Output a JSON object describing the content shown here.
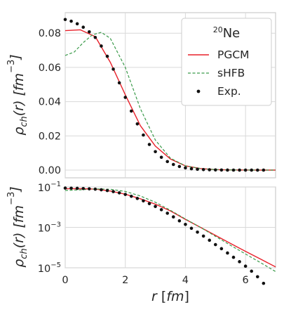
{
  "chart_data": [
    {
      "type": "line",
      "panel": "top",
      "ylabel": "ρ_ch(r) [fm⁻³]",
      "xlabel": "",
      "xlim": [
        0,
        7
      ],
      "ylim": [
        -0.0045,
        0.092
      ],
      "yscale": "linear",
      "xticks": [
        0,
        2,
        4,
        6
      ],
      "yticks": [
        0.0,
        0.02,
        0.04,
        0.06,
        0.08
      ],
      "ytick_labels": [
        "0.00",
        "0.02",
        "0.04",
        "0.06",
        "0.08"
      ],
      "grid": true,
      "legend": {
        "placement": "top-right",
        "title_base": "Ne",
        "title_sup": "20"
      },
      "series": [
        {
          "name": "PGCM",
          "style": "line",
          "color": "#e8202a",
          "x": [
            0,
            0.5,
            1.0,
            1.5,
            2.0,
            2.5,
            3.0,
            3.5,
            4.0,
            4.5,
            5.0,
            5.5,
            6.0,
            6.5,
            7.0
          ],
          "y": [
            0.0815,
            0.082,
            0.078,
            0.063,
            0.044,
            0.026,
            0.014,
            0.0065,
            0.0025,
            0.0009,
            0.0003,
            0.0001,
            4e-05,
            1e-05,
            0.0
          ]
        },
        {
          "name": "sHFB",
          "style": "dashed",
          "color": "#3a9a4a",
          "x": [
            0,
            0.3,
            0.6,
            0.9,
            1.2,
            1.5,
            2.0,
            2.5,
            3.0,
            3.5,
            4.0,
            4.5,
            5.0,
            5.5,
            6.0,
            6.5,
            7.0
          ],
          "y": [
            0.067,
            0.069,
            0.0745,
            0.079,
            0.0805,
            0.077,
            0.06,
            0.036,
            0.0175,
            0.007,
            0.0025,
            0.0009,
            0.0003,
            0.0001,
            4e-05,
            1e-05,
            0.0
          ]
        },
        {
          "name": "Exp.",
          "style": "dots",
          "color": "#111111",
          "x": [
            0.0,
            0.2,
            0.4,
            0.6,
            0.8,
            1.0,
            1.2,
            1.4,
            1.6,
            1.8,
            2.0,
            2.2,
            2.4,
            2.6,
            2.8,
            3.0,
            3.2,
            3.4,
            3.6,
            3.8,
            4.0,
            4.2,
            4.4,
            4.6,
            4.8,
            5.0,
            5.2,
            5.4,
            5.6,
            5.8,
            6.0,
            6.2,
            6.4,
            6.6
          ],
          "y": [
            0.088,
            0.087,
            0.0855,
            0.0835,
            0.0808,
            0.0775,
            0.0725,
            0.0665,
            0.059,
            0.051,
            0.0425,
            0.0345,
            0.027,
            0.0205,
            0.015,
            0.0108,
            0.0075,
            0.005,
            0.0033,
            0.0021,
            0.0013,
            0.0008,
            0.0005,
            0.0003,
            0.0002,
            0.0001,
            6e-05,
            3e-05,
            2e-05,
            1e-05,
            0.0,
            0.0,
            0.0,
            0.0
          ]
        }
      ]
    },
    {
      "type": "line",
      "panel": "bottom",
      "ylabel": "ρ_ch(r) [fm⁻³]",
      "xlabel": "r [fm]",
      "xlim": [
        0,
        7
      ],
      "ylim_log10": [
        -5,
        -1
      ],
      "yscale": "log",
      "xticks": [
        0,
        2,
        4,
        6
      ],
      "xtick_labels": [
        "0",
        "2",
        "4",
        "6"
      ],
      "yticks_exp": [
        -1,
        -3,
        -5
      ],
      "grid": true,
      "series": [
        {
          "name": "PGCM",
          "style": "line",
          "color": "#e8202a",
          "x": [
            0,
            0.5,
            1.0,
            1.5,
            2.0,
            2.5,
            3.0,
            3.5,
            4.0,
            4.5,
            5.0,
            5.5,
            6.0,
            6.5,
            7.0
          ],
          "y": [
            0.0815,
            0.082,
            0.078,
            0.063,
            0.044,
            0.026,
            0.014,
            0.0065,
            0.0025,
            0.001,
            0.0004,
            0.00016,
            6.5e-05,
            2.7e-05,
            1.1e-05
          ]
        },
        {
          "name": "sHFB",
          "style": "dashed",
          "color": "#3a9a4a",
          "x": [
            0,
            0.5,
            1.0,
            1.5,
            2.0,
            2.5,
            3.0,
            3.5,
            4.0,
            4.5,
            5.0,
            5.5,
            6.0,
            6.5,
            7.0
          ],
          "y": [
            0.067,
            0.072,
            0.08,
            0.077,
            0.06,
            0.036,
            0.0175,
            0.007,
            0.0026,
            0.001,
            0.00036,
            0.00013,
            4.8e-05,
            1.8e-05,
            6.5e-06
          ]
        },
        {
          "name": "Exp.",
          "style": "dots",
          "color": "#111111",
          "x": [
            0.0,
            0.2,
            0.4,
            0.6,
            0.8,
            1.0,
            1.2,
            1.4,
            1.6,
            1.8,
            2.0,
            2.2,
            2.4,
            2.6,
            2.8,
            3.0,
            3.2,
            3.4,
            3.6,
            3.8,
            4.0,
            4.2,
            4.4,
            4.6,
            4.8,
            5.0,
            5.2,
            5.4,
            5.6,
            5.8,
            6.0,
            6.2,
            6.4,
            6.6
          ],
          "y": [
            0.088,
            0.087,
            0.0855,
            0.0835,
            0.0808,
            0.0775,
            0.0725,
            0.0665,
            0.059,
            0.051,
            0.0425,
            0.0345,
            0.027,
            0.0205,
            0.015,
            0.0108,
            0.0075,
            0.005,
            0.0033,
            0.0021,
            0.0014,
            0.0009,
            0.00058,
            0.00037,
            0.00023,
            0.00014,
            8.8e-05,
            5.4e-05,
            3.3e-05,
            2e-05,
            1.2e-05,
            6.8e-06,
            3.6e-06,
            1.7e-06
          ]
        }
      ]
    }
  ]
}
